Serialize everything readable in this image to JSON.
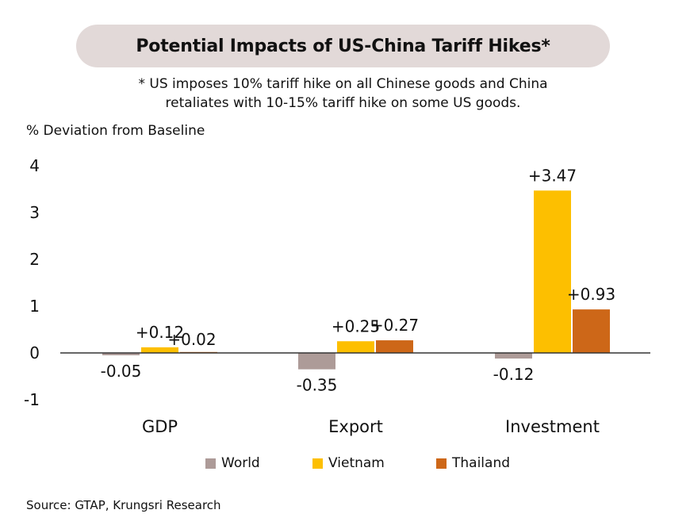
{
  "chart_data": {
    "type": "bar",
    "title": "Potential Impacts of US-China Tariff Hikes*",
    "subtitle_lines": [
      "* US imposes 10% tariff hike on all Chinese goods and China",
      "retaliates with 10-15% tariff hike on some US goods."
    ],
    "ylabel": "% Deviation from Baseline",
    "categories": [
      "GDP",
      "Export",
      "Investment"
    ],
    "series": [
      {
        "name": "World",
        "color": "#ad9b98",
        "values": [
          -0.05,
          -0.35,
          -0.12
        ],
        "labels": [
          "-0.05",
          "-0.35",
          "-0.12"
        ]
      },
      {
        "name": "Vietnam",
        "color": "#fdbf00",
        "values": [
          0.12,
          0.25,
          3.47
        ],
        "labels": [
          "+0.12",
          "+0.25",
          "+3.47"
        ]
      },
      {
        "name": "Thailand",
        "color": "#cd6718",
        "values": [
          0.02,
          0.27,
          0.93
        ],
        "labels": [
          "+0.02",
          "+0.27",
          "+0.93"
        ]
      }
    ],
    "ylim": [
      -1,
      4
    ],
    "yticks": [
      4,
      3,
      2,
      1,
      0,
      -1
    ],
    "grid": false,
    "legend_position": "bottom"
  },
  "source": "Source: GTAP, Krungsri Research"
}
